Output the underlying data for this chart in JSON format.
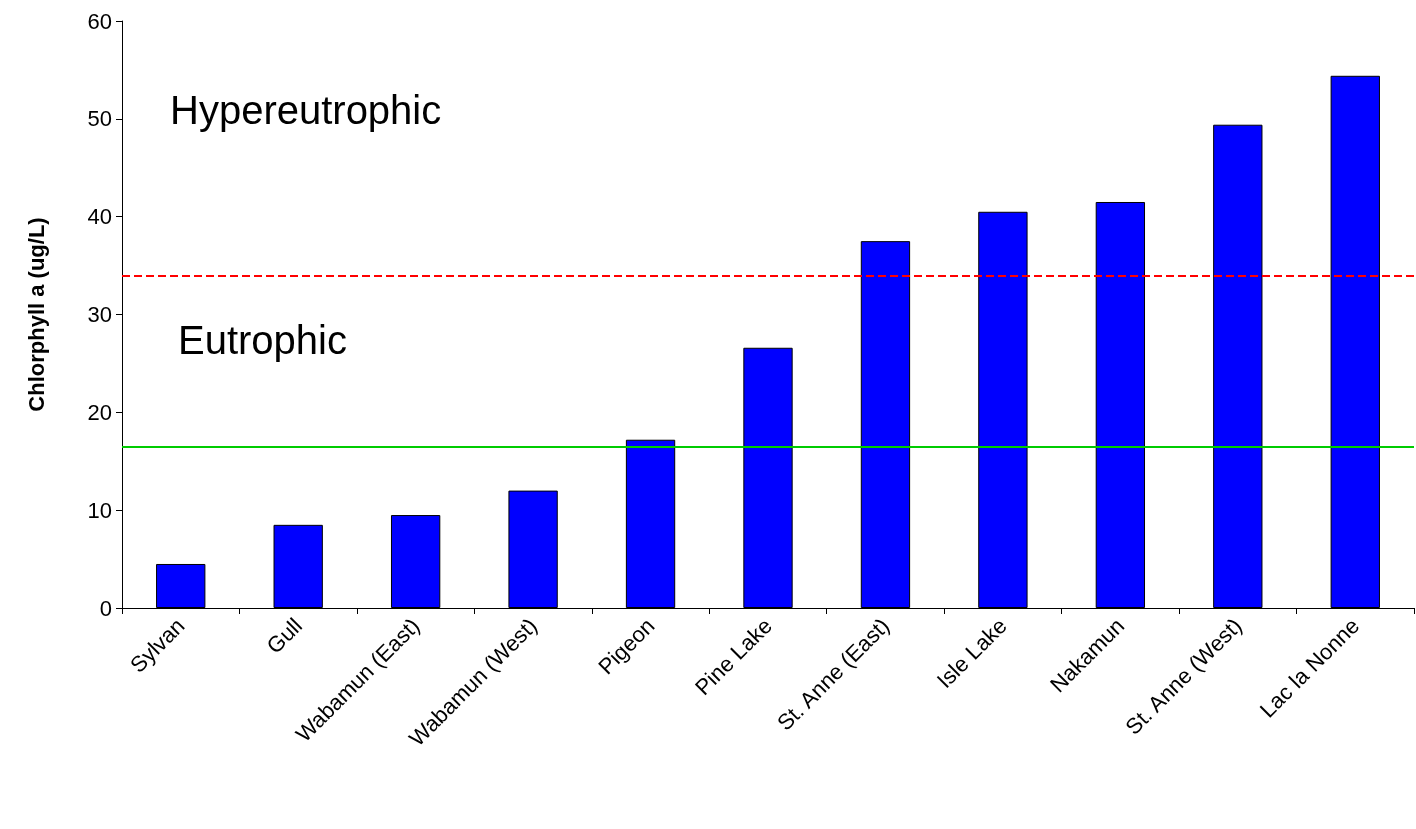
{
  "chart_data": {
    "type": "bar",
    "ylabel": "Chlorphyll a (ug/L)",
    "categories": [
      "Sylvan",
      "Gull",
      "Wabamun (East)",
      "Wabamun (West)",
      "Pigeon",
      "Pine Lake",
      "St. Anne (East)",
      "Isle Lake",
      "Nakamun",
      "St. Anne (West)",
      "Lac la Nonne"
    ],
    "values": [
      4.5,
      8.5,
      9.5,
      12.0,
      17.2,
      26.6,
      37.5,
      40.5,
      41.5,
      49.4,
      54.4
    ],
    "color": "#0000ff",
    "ylim": [
      0,
      60
    ],
    "yticks": [
      0,
      10,
      20,
      30,
      40,
      50,
      60
    ],
    "grid": false,
    "ref_lines": [
      {
        "axis": "y",
        "value": 34,
        "color": "#ff0000",
        "line_style": "dashed"
      },
      {
        "axis": "y",
        "value": 16.5,
        "color": "#00cc00",
        "line_style": "solid"
      }
    ],
    "annotations": [
      "Hypereutrophic",
      "Eutrophic"
    ]
  }
}
